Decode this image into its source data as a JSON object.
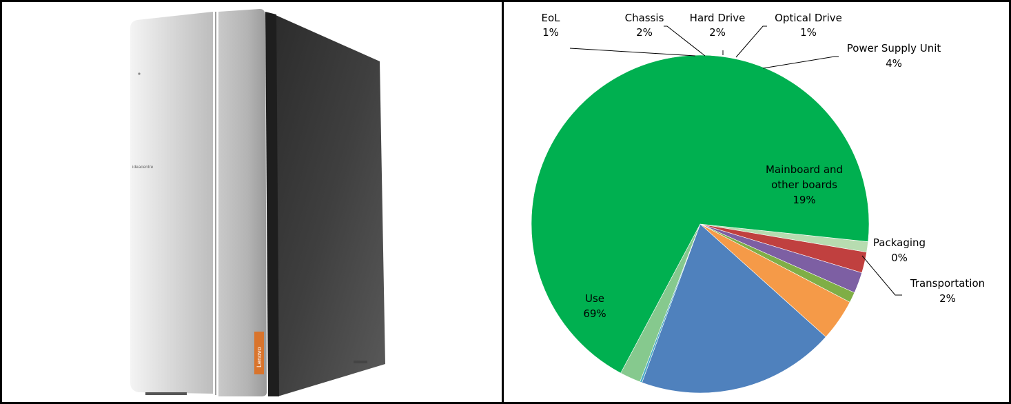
{
  "product": {
    "front_text": "ideacentre",
    "badge_text": "Lenovo",
    "badge_color": "#d9742c"
  },
  "chart_data": {
    "type": "pie",
    "title": "",
    "slices": [
      {
        "name": "EoL",
        "value": 1,
        "label": "1%",
        "color": "#b7dcb0"
      },
      {
        "name": "Chassis",
        "value": 2,
        "label": "2%",
        "color": "#c0403f"
      },
      {
        "name": "Hard Drive",
        "value": 2,
        "label": "2%",
        "color": "#7d5fa3"
      },
      {
        "name": "Optical Drive",
        "value": 1,
        "label": "1%",
        "color": "#7fae46"
      },
      {
        "name": "Power Supply Unit",
        "value": 4,
        "label": "4%",
        "color": "#f59a48"
      },
      {
        "name": "Mainboard and other boards",
        "value": 19,
        "label": "19%",
        "color": "#4f81bd"
      },
      {
        "name": "Packaging",
        "value": 0.2,
        "label": "0%",
        "color": "#4bacc6"
      },
      {
        "name": "Transportation",
        "value": 2,
        "label": "2%",
        "color": "#86c98e"
      },
      {
        "name": "Use",
        "value": 69,
        "label": "69%",
        "color": "#00b050"
      }
    ]
  }
}
